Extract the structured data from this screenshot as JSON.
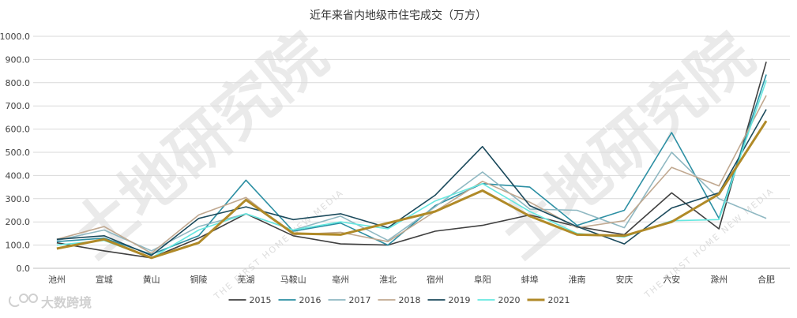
{
  "chart_data": {
    "type": "line",
    "title": "近年来省内地级市住宅成交（万方）",
    "xlabel": "",
    "ylabel": "",
    "ylim": [
      0,
      1000
    ],
    "yticks": [
      "0.0",
      "100.0",
      "200.0",
      "300.0",
      "400.0",
      "500.0",
      "600.0",
      "700.0",
      "800.0",
      "900.0",
      "1000.0"
    ],
    "categories": [
      "池州",
      "宣城",
      "黄山",
      "铜陵",
      "芜湖",
      "马鞍山",
      "亳州",
      "淮北",
      "宿州",
      "阜阳",
      "蚌埠",
      "淮南",
      "安庆",
      "六安",
      "滁州",
      "合肥"
    ],
    "legend_position": "bottom",
    "series": [
      {
        "name": "2015",
        "color": "#404040",
        "values": [
          110,
          75,
          45,
          130,
          235,
          140,
          105,
          100,
          160,
          185,
          230,
          180,
          145,
          325,
          170,
          890
        ]
      },
      {
        "name": "2016",
        "color": "#2c8fa3",
        "values": [
          115,
          130,
          60,
          140,
          380,
          160,
          195,
          100,
          270,
          365,
          350,
          185,
          250,
          585,
          215,
          835
        ]
      },
      {
        "name": "2017",
        "color": "#8fb8c2",
        "values": [
          120,
          165,
          75,
          180,
          235,
          165,
          225,
          120,
          265,
          415,
          255,
          250,
          175,
          500,
          300,
          215
        ]
      },
      {
        "name": "2018",
        "color": "#c0a890",
        "values": [
          125,
          180,
          65,
          230,
          305,
          145,
          155,
          115,
          245,
          375,
          285,
          175,
          205,
          435,
          355,
          745
        ]
      },
      {
        "name": "2019",
        "color": "#1b4a5c",
        "values": [
          125,
          140,
          55,
          215,
          265,
          210,
          235,
          175,
          315,
          525,
          270,
          180,
          105,
          260,
          325,
          685
        ]
      },
      {
        "name": "2020",
        "color": "#66e8e0",
        "values": [
          100,
          120,
          45,
          165,
          235,
          165,
          200,
          170,
          290,
          365,
          245,
          150,
          135,
          205,
          210,
          810
        ]
      },
      {
        "name": "2021",
        "color": "#b08a28",
        "values": [
          85,
          125,
          45,
          110,
          295,
          150,
          145,
          195,
          245,
          335,
          225,
          145,
          140,
          200,
          320,
          635
        ]
      }
    ]
  },
  "watermark": {
    "main": "土地研究院",
    "sub": "THE FIRST HOME NEW MEDIA"
  },
  "brand": {
    "text": "大数跨境"
  }
}
